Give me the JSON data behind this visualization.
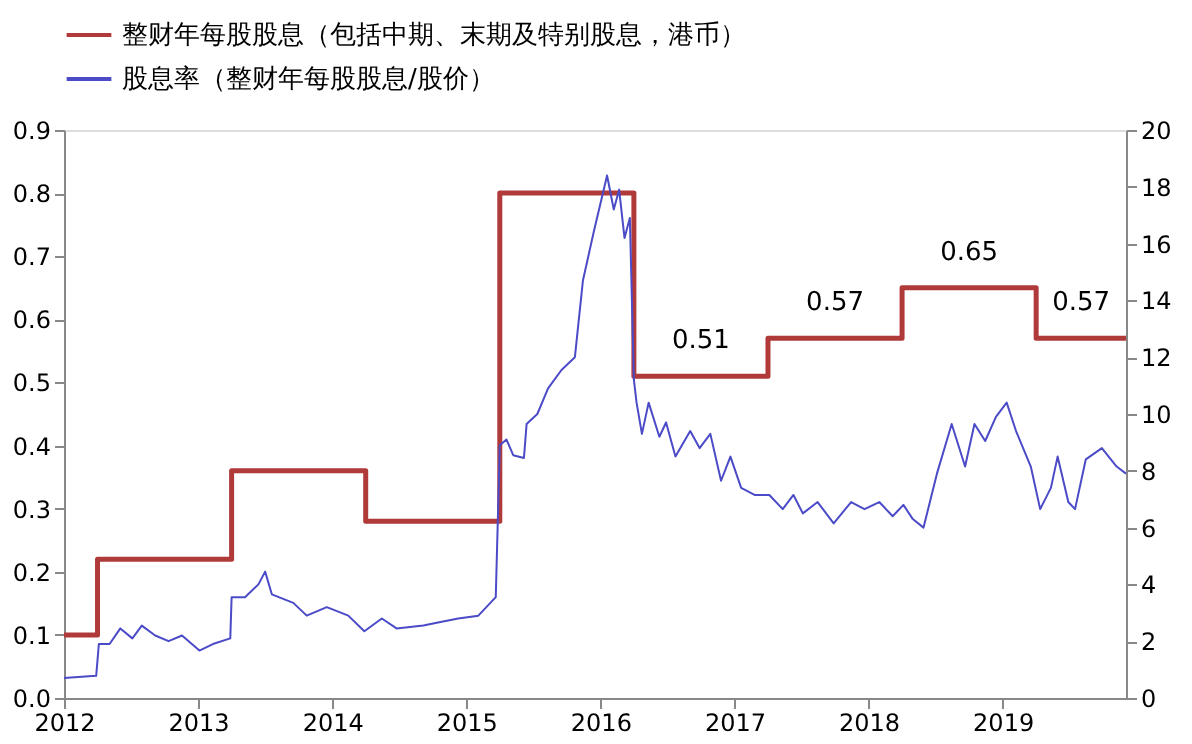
{
  "chart_data": {
    "type": "step",
    "xlim": [
      2012,
      2019.92
    ],
    "xticks": [
      2012,
      2013,
      2014,
      2015,
      2016,
      2017,
      2018,
      2019
    ],
    "ylim": [
      0,
      0.9
    ],
    "yticks": [
      {
        "value": 0,
        "label": "0.0"
      },
      0.1,
      0.2,
      0.3,
      0.4,
      0.5,
      0.6,
      0.7,
      0.8,
      0.9
    ],
    "y2lim": [
      0,
      20
    ],
    "y2ticks": [
      0,
      2,
      4,
      6,
      8,
      10,
      12,
      14,
      16,
      18,
      20
    ],
    "grid": false,
    "legend": "top",
    "line_style": "solid",
    "marker": "none",
    "series": [
      {
        "name": "整财年每股股息（包括中期、末期及特别股息，港币）",
        "color": "#b03a3a",
        "type": "step",
        "x": [
          2012,
          2012.25,
          2013.25,
          2014.25,
          2015.25,
          2016.25,
          2017.25,
          2018.25,
          2019.25,
          2019.92
        ],
        "values": [
          0.1,
          0.22,
          0.36,
          0.28,
          0.8,
          0.51,
          0.57,
          0.65,
          0.57,
          0.57
        ],
        "value_labels": [
          null,
          null,
          null,
          null,
          null,
          "0.51",
          "0.57",
          "0.65",
          "0.57",
          null
        ]
      },
      {
        "name": "股息率（整财年每股股息/股价）",
        "color": "#4b4bc8",
        "type": "line",
        "axis": "y2",
        "x": [
          2012.0,
          2012.24,
          2012.26,
          2012.34,
          2012.42,
          2012.51,
          2012.58,
          2012.68,
          2012.78,
          2012.88,
          2013.01,
          2013.11,
          2013.24,
          2013.25,
          2013.35,
          2013.45,
          2013.5,
          2013.55,
          2013.71,
          2013.81,
          2013.96,
          2014.12,
          2014.24,
          2014.37,
          2014.48,
          2014.68,
          2014.78,
          2014.94,
          2015.09,
          2015.22,
          2015.25,
          2015.3,
          2015.35,
          2015.43,
          2015.45,
          2015.53,
          2015.61,
          2015.71,
          2015.81,
          2015.87,
          2015.95,
          2016.05,
          2016.1,
          2016.14,
          2016.18,
          2016.22,
          2016.25,
          2016.27,
          2016.31,
          2016.36,
          2016.44,
          2016.49,
          2016.56,
          2016.67,
          2016.74,
          2016.82,
          2016.9,
          2016.97,
          2017.05,
          2017.15,
          2017.26,
          2017.36,
          2017.44,
          2017.51,
          2017.62,
          2017.74,
          2017.87,
          2017.97,
          2018.08,
          2018.18,
          2018.26,
          2018.33,
          2018.41,
          2018.51,
          2018.62,
          2018.72,
          2018.79,
          2018.87,
          2018.95,
          2019.03,
          2019.1,
          2019.21,
          2019.28,
          2019.36,
          2019.41,
          2019.49,
          2019.54,
          2019.62,
          2019.74,
          2019.85,
          2019.92
        ],
        "values": [
          0.7,
          0.78,
          1.9,
          1.9,
          2.45,
          2.1,
          2.55,
          2.2,
          2.0,
          2.2,
          1.67,
          1.9,
          2.1,
          3.55,
          3.55,
          4.0,
          4.45,
          3.65,
          3.35,
          2.9,
          3.2,
          2.9,
          2.35,
          2.8,
          2.45,
          2.55,
          2.65,
          2.8,
          2.9,
          3.55,
          8.9,
          9.1,
          8.55,
          8.45,
          9.65,
          10.0,
          10.9,
          11.55,
          12.0,
          14.7,
          16.4,
          18.4,
          17.2,
          17.9,
          16.2,
          16.9,
          11.2,
          10.4,
          9.3,
          10.4,
          9.2,
          9.7,
          8.5,
          9.4,
          8.8,
          9.3,
          7.65,
          8.5,
          7.4,
          7.15,
          7.15,
          6.65,
          7.15,
          6.5,
          6.9,
          6.15,
          6.9,
          6.65,
          6.9,
          6.4,
          6.8,
          6.3,
          6.0,
          7.9,
          9.65,
          8.15,
          9.65,
          9.05,
          9.9,
          10.4,
          9.4,
          8.15,
          6.65,
          7.4,
          8.5,
          6.9,
          6.65,
          8.4,
          8.8,
          8.15,
          7.9
        ]
      }
    ]
  }
}
